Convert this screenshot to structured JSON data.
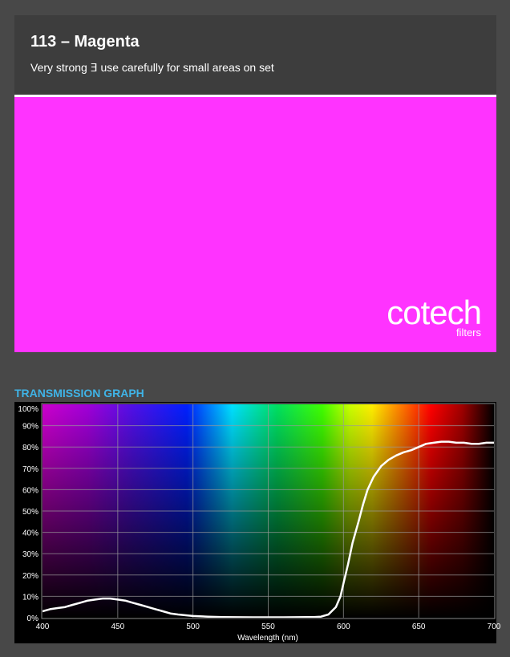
{
  "header": {
    "title": "113 – Magenta",
    "subtitle": "Very strong ⴺ use carefully for small areas on set"
  },
  "swatch": {
    "color": "#ff33ff"
  },
  "logo": {
    "word": "cotech",
    "sub": "filters"
  },
  "graph": {
    "heading": "TRANSMISSION GRAPH"
  },
  "chart_data": {
    "type": "line",
    "title": "TRANSMISSION GRAPH",
    "xlabel": "Wavelength (nm)",
    "ylabel": "",
    "xlim": [
      400,
      700
    ],
    "ylim": [
      0,
      100
    ],
    "x_ticks": [
      "400",
      "450",
      "500",
      "550",
      "600",
      "650",
      "700"
    ],
    "y_ticks": [
      "0%",
      "10%",
      "20%",
      "30%",
      "40%",
      "50%",
      "60%",
      "70%",
      "80%",
      "90%",
      "100%"
    ],
    "grid": true,
    "series": [
      {
        "name": "",
        "color": "#ffffff",
        "x": [
          400,
          405,
          410,
          415,
          420,
          425,
          430,
          435,
          440,
          445,
          450,
          455,
          460,
          465,
          470,
          475,
          480,
          485,
          490,
          500,
          510,
          520,
          540,
          560,
          580,
          585,
          590,
          595,
          598,
          600,
          603,
          606,
          610,
          613,
          616,
          620,
          625,
          630,
          635,
          640,
          645,
          650,
          655,
          660,
          665,
          670,
          675,
          680,
          685,
          690,
          695,
          700
        ],
        "y": [
          3,
          4,
          4.5,
          5,
          6,
          7,
          8,
          8.5,
          9,
          9,
          8.5,
          8,
          7,
          6,
          5,
          4,
          3,
          2,
          1.5,
          0.8,
          0.5,
          0.3,
          0.2,
          0.2,
          0.3,
          0.5,
          1.5,
          5,
          10,
          16,
          25,
          35,
          45,
          53,
          60,
          66,
          71,
          74,
          76,
          77.5,
          78.5,
          80,
          81.5,
          82,
          82.5,
          82.5,
          82,
          82,
          81.5,
          81.5,
          82,
          82
        ]
      }
    ]
  }
}
